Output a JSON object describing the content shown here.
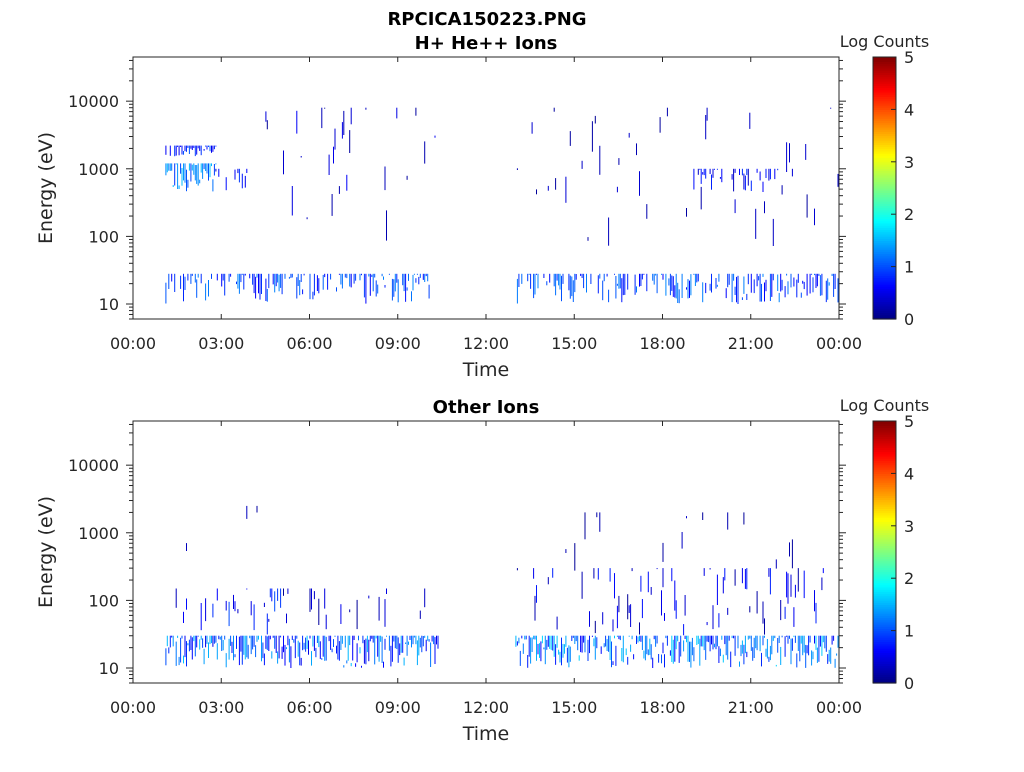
{
  "figure": {
    "title": "RPCICA150223.PNG"
  },
  "chart_data": [
    {
      "type": "heatmap",
      "title": "H+ He++ Ions",
      "xlabel": "Time",
      "ylabel": "Energy (eV)",
      "x_ticks": [
        "00:00",
        "03:00",
        "06:00",
        "09:00",
        "12:00",
        "15:00",
        "18:00",
        "21:00",
        "00:00"
      ],
      "xlim_hours": [
        0,
        24
      ],
      "y_scale": "log",
      "ylim": [
        6,
        45000
      ],
      "y_ticks": [
        10,
        100,
        1000,
        10000
      ],
      "y_tick_labels": [
        "10",
        "100",
        "1000",
        "10000"
      ],
      "colorbar": {
        "label": "Log Counts",
        "range": [
          0,
          5
        ],
        "ticks": [
          "0",
          "1",
          "2",
          "3",
          "4",
          "5"
        ],
        "colormap": "jet"
      },
      "data_gaps_hours": [
        [
          0,
          1.0
        ],
        [
          10.4,
          13.0
        ]
      ],
      "bands": [
        {
          "t": [
            1.1,
            10.4
          ],
          "e": [
            10,
            28
          ],
          "density": 0.6,
          "level": [
            0.6,
            1.3
          ]
        },
        {
          "t": [
            13.0,
            24.0
          ],
          "e": [
            10,
            28
          ],
          "density": 0.6,
          "level": [
            0.6,
            1.3
          ]
        },
        {
          "t": [
            1.1,
            2.8
          ],
          "e": [
            450,
            1200
          ],
          "density": 0.95,
          "level": [
            0.8,
            1.6
          ]
        },
        {
          "t": [
            1.1,
            2.8
          ],
          "e": [
            1500,
            2200
          ],
          "density": 0.8,
          "level": [
            0.5,
            1.1
          ]
        },
        {
          "t": [
            2.8,
            4.0
          ],
          "e": [
            450,
            1000
          ],
          "density": 0.4,
          "level": [
            0.3,
            0.9
          ]
        },
        {
          "t": [
            4.5,
            10.4
          ],
          "e": [
            80,
            8000
          ],
          "density": 0.25,
          "level": [
            0.1,
            0.6
          ]
        },
        {
          "t": [
            13.0,
            24.0
          ],
          "e": [
            60,
            8000
          ],
          "density": 0.18,
          "level": [
            0.1,
            0.5
          ]
        },
        {
          "t": [
            19.0,
            22.0
          ],
          "e": [
            450,
            1000
          ],
          "density": 0.45,
          "level": [
            0.3,
            0.9
          ]
        }
      ]
    },
    {
      "type": "heatmap",
      "title": "Other Ions",
      "xlabel": "Time",
      "ylabel": "Energy (eV)",
      "x_ticks": [
        "00:00",
        "03:00",
        "06:00",
        "09:00",
        "12:00",
        "15:00",
        "18:00",
        "21:00",
        "00:00"
      ],
      "xlim_hours": [
        0,
        24
      ],
      "y_scale": "log",
      "ylim": [
        6,
        45000
      ],
      "y_ticks": [
        10,
        100,
        1000,
        10000
      ],
      "y_tick_labels": [
        "10",
        "100",
        "1000",
        "10000"
      ],
      "colorbar": {
        "label": "Log Counts",
        "range": [
          0,
          5
        ],
        "ticks": [
          "0",
          "1",
          "2",
          "3",
          "4",
          "5"
        ],
        "colormap": "jet"
      },
      "data_gaps_hours": [
        [
          0,
          1.0
        ],
        [
          10.4,
          13.0
        ]
      ],
      "bands": [
        {
          "t": [
            1.1,
            10.4
          ],
          "e": [
            10,
            30
          ],
          "density": 0.95,
          "level": [
            0.5,
            1.6
          ]
        },
        {
          "t": [
            13.0,
            24.0
          ],
          "e": [
            10,
            30
          ],
          "density": 0.95,
          "level": [
            0.6,
            1.7
          ]
        },
        {
          "t": [
            1.2,
            5.0
          ],
          "e": [
            30,
            150
          ],
          "density": 0.4,
          "level": [
            0.3,
            1.0
          ]
        },
        {
          "t": [
            5.0,
            10.4
          ],
          "e": [
            30,
            150
          ],
          "density": 0.2,
          "level": [
            0.1,
            0.6
          ]
        },
        {
          "t": [
            13.0,
            24.0
          ],
          "e": [
            30,
            300
          ],
          "density": 0.3,
          "level": [
            0.1,
            0.8
          ]
        },
        {
          "t": [
            1.2,
            10.0
          ],
          "e": [
            300,
            2500
          ],
          "density": 0.04,
          "level": [
            0.1,
            0.4
          ]
        },
        {
          "t": [
            13.0,
            24.0
          ],
          "e": [
            200,
            2000
          ],
          "density": 0.06,
          "level": [
            0.1,
            0.4
          ]
        }
      ]
    }
  ]
}
